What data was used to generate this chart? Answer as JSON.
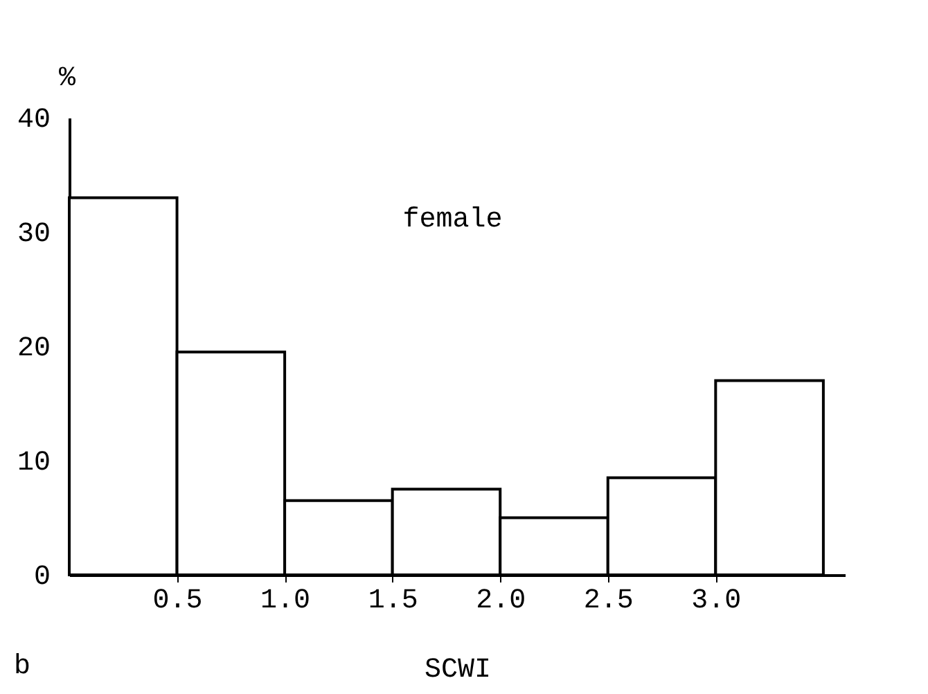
{
  "chart_data": {
    "type": "histogram",
    "bins": [
      0,
      0.5,
      1.0,
      1.5,
      2.0,
      2.5,
      3.0,
      3.5
    ],
    "values": [
      33,
      19.5,
      6.5,
      7.5,
      5,
      8.5,
      17
    ],
    "color": "#ffffff",
    "xlabel": "SCWI",
    "ylabel": "%",
    "xlim": [
      0,
      3.6
    ],
    "ylim": [
      0,
      40
    ],
    "xticks": [
      {
        "value": 0.5,
        "label": "0.5"
      },
      {
        "value": 1.0,
        "label": "1.0"
      },
      {
        "value": 1.5,
        "label": "1.5"
      },
      {
        "value": 2.0,
        "label": "2.0"
      },
      {
        "value": 2.5,
        "label": "2.5"
      },
      {
        "value": 3.0,
        "label": "3.0"
      }
    ],
    "yticks": [
      0,
      10,
      20,
      30,
      40
    ],
    "annotations": [
      "female",
      "b"
    ],
    "grid": false
  }
}
